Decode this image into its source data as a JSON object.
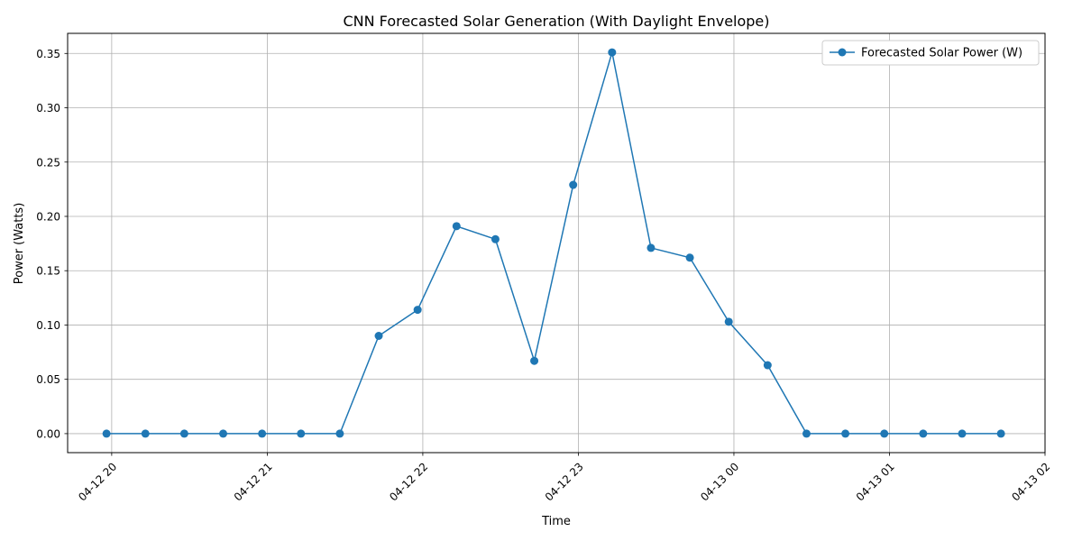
{
  "chart_data": {
    "type": "line",
    "title": "CNN Forecasted Solar Generation (With Daylight Envelope)",
    "xlabel": "Time",
    "ylabel": "Power (Watts)",
    "grid": true,
    "legend_position": "top-right",
    "x_tick_labels": [
      "04-12 20",
      "04-12 21",
      "04-12 22",
      "04-12 23",
      "04-13 00",
      "04-13 01",
      "04-13 02"
    ],
    "y_tick_labels": [
      "0.00",
      "0.05",
      "0.10",
      "0.15",
      "0.20",
      "0.25",
      "0.30",
      "0.35"
    ],
    "ylim": [
      -0.0175,
      0.3685
    ],
    "xlim": [
      "04-12 19:43",
      "04-13 02:00"
    ],
    "x": [
      "04-12 19:58",
      "04-12 20:13",
      "04-12 20:28",
      "04-12 20:43",
      "04-12 20:58",
      "04-12 21:13",
      "04-12 21:28",
      "04-12 21:43",
      "04-12 21:58",
      "04-12 22:13",
      "04-12 22:28",
      "04-12 22:43",
      "04-12 22:58",
      "04-12 23:13",
      "04-12 23:28",
      "04-12 23:43",
      "04-12 23:58",
      "04-13 00:13",
      "04-13 00:28",
      "04-13 00:43",
      "04-13 00:58",
      "04-13 01:13",
      "04-13 01:28",
      "04-13 01:43"
    ],
    "series": [
      {
        "name": "Forecasted Solar Power (W)",
        "color": "#1f77b4",
        "values": [
          0,
          0,
          0,
          0,
          0,
          0,
          0,
          0.09,
          0.114,
          0.191,
          0.179,
          0.067,
          0.229,
          0.351,
          0.171,
          0.162,
          0.103,
          0.063,
          0,
          0,
          0,
          0,
          0,
          0
        ]
      }
    ]
  }
}
